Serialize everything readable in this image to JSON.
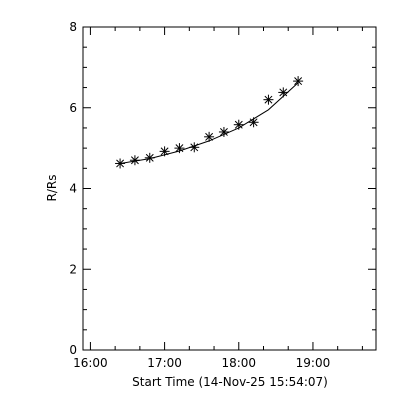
{
  "chart_data": {
    "type": "scatter",
    "title": "",
    "xlabel": "Start Time (14-Nov-25 15:54:07)",
    "ylabel": "R/Rs",
    "xlim": [
      "15:54",
      "19:51"
    ],
    "ylim": [
      0,
      8
    ],
    "x_ticks": [
      "16:00",
      "17:00",
      "18:00",
      "19:00"
    ],
    "y_ticks": [
      0,
      2,
      4,
      6,
      8
    ],
    "grid": false,
    "legend": "none",
    "marker": "asterisk",
    "series": [
      {
        "x": [
          "16:24",
          "16:36",
          "16:48",
          "17:00",
          "17:12",
          "17:24",
          "17:36",
          "17:48",
          "18:00",
          "18:12",
          "18:24",
          "18:36",
          "18:48"
        ],
        "y": [
          4.62,
          4.7,
          4.76,
          4.92,
          5.0,
          5.02,
          5.28,
          5.4,
          5.58,
          5.64,
          6.2,
          6.38,
          6.66
        ]
      }
    ],
    "fit_curve": {
      "x": [
        "16:24",
        "16:48",
        "17:12",
        "17:36",
        "18:00",
        "18:24",
        "18:48"
      ],
      "y": [
        4.62,
        4.74,
        4.93,
        5.18,
        5.5,
        5.95,
        6.62
      ]
    },
    "colors": {
      "axis": "#000000",
      "marker": "#000000",
      "fit": "#000000",
      "background": "#ffffff"
    }
  }
}
